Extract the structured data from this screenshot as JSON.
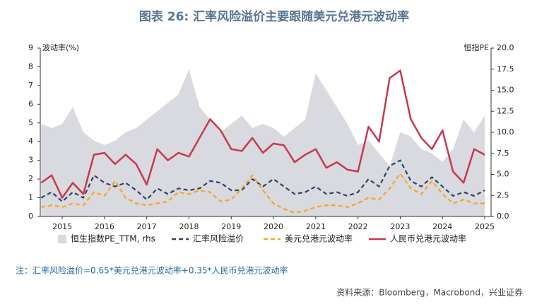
{
  "chart_data": {
    "type": "line",
    "title": "图表 26: 汇率风险溢价主要跟随美元兑港元波动率",
    "y_label": "波动率(%)",
    "y2_label": "恒指PE",
    "note": "注：汇率风险溢价=0.65*美元兑港元波动率+0.35*人民币兑港元波动率",
    "source": "资料来源：Bloomberg，Macrobond，兴业证券",
    "x": [
      2014.5,
      2014.75,
      2015,
      2015.25,
      2015.5,
      2015.75,
      2016,
      2016.25,
      2016.5,
      2016.75,
      2017,
      2017.25,
      2017.5,
      2017.75,
      2018,
      2018.25,
      2018.5,
      2018.75,
      2019,
      2019.25,
      2019.5,
      2019.75,
      2020,
      2020.25,
      2020.5,
      2020.75,
      2021,
      2021.25,
      2021.5,
      2021.75,
      2022,
      2022.25,
      2022.5,
      2022.75,
      2023,
      2023.25,
      2023.5,
      2023.75,
      2024,
      2024.25,
      2024.5,
      2024.75,
      2025
    ],
    "series": [
      {
        "name": "恒生指数PE_TTM, rhs",
        "color": "#d9d9e0",
        "axis": "y2",
        "style": "area",
        "values": [
          11,
          10.5,
          11,
          13,
          10,
          9,
          8.5,
          9,
          10,
          10.5,
          11.5,
          12.5,
          13.5,
          14.5,
          17.5,
          13,
          11.5,
          10,
          11,
          12,
          10.5,
          11,
          10.5,
          9.5,
          10.5,
          11.5,
          17,
          15,
          13,
          11,
          8.5,
          9,
          7.5,
          6,
          10,
          9.5,
          8,
          7.5,
          6.5,
          8,
          11.5,
          10,
          12
        ]
      },
      {
        "name": "汇率风险溢价",
        "color": "#2f4560",
        "style": "dash",
        "values": [
          1.0,
          1.3,
          0.8,
          1.3,
          1.0,
          2.2,
          1.8,
          1.6,
          1.8,
          1.4,
          0.9,
          1.5,
          1.2,
          1.5,
          1.4,
          1.5,
          1.9,
          1.8,
          1.4,
          1.4,
          2.0,
          1.6,
          2.0,
          1.6,
          1.2,
          1.3,
          1.6,
          1.2,
          1.3,
          1.1,
          1.3,
          2.0,
          1.6,
          2.7,
          3.0,
          1.9,
          1.6,
          2.1,
          1.6,
          1.1,
          1.3,
          1.1,
          1.4
        ]
      },
      {
        "name": "美元兑港元波动率",
        "color": "#f5a623",
        "style": "dash",
        "values": [
          0.5,
          0.6,
          0.5,
          0.7,
          0.6,
          1.3,
          1.1,
          1.9,
          1.0,
          0.7,
          0.6,
          0.7,
          0.8,
          1.3,
          1.2,
          1.4,
          1.3,
          0.8,
          0.9,
          1.5,
          2.2,
          1.4,
          0.7,
          0.4,
          0.2,
          0.3,
          0.5,
          0.6,
          0.6,
          0.5,
          0.7,
          1.0,
          0.9,
          1.5,
          2.3,
          1.5,
          1.2,
          1.9,
          1.2,
          0.7,
          0.9,
          0.7,
          0.7
        ]
      },
      {
        "name": "人民币兑港元波动率",
        "color": "#c8384f",
        "style": "solid",
        "values": [
          1.8,
          2.2,
          1.0,
          1.8,
          1.2,
          3.3,
          3.4,
          2.8,
          3.3,
          2.8,
          1.7,
          3.6,
          3.0,
          3.4,
          3.2,
          4.2,
          5.2,
          4.6,
          3.6,
          3.5,
          4.2,
          3.4,
          3.9,
          3.8,
          2.9,
          3.3,
          3.6,
          2.6,
          2.9,
          2.5,
          2.4,
          4.8,
          4.0,
          7.4,
          7.8,
          5.2,
          4.2,
          3.6,
          4.6,
          2.4,
          1.8,
          3.6,
          3.3
        ]
      }
    ],
    "xlim": [
      2014.48,
      2025.15
    ],
    "xticks": [
      2015,
      2016,
      2017,
      2018,
      2019,
      2020,
      2021,
      2022,
      2023,
      2024,
      2025
    ],
    "ylim": [
      0,
      9
    ],
    "yticks": [
      0,
      1,
      2,
      3,
      4,
      5,
      6,
      7,
      8,
      9
    ],
    "y2lim": [
      0,
      20
    ],
    "y2ticks": [
      {
        "value": 0,
        "label": "0.0"
      },
      2.5,
      {
        "value": 5,
        "label": "5.0"
      },
      7.5,
      {
        "value": 10,
        "label": "10.0"
      },
      12.5,
      {
        "value": 15,
        "label": "15.0"
      },
      17.5,
      {
        "value": 20,
        "label": "20.0"
      }
    ],
    "legend": "bottom"
  }
}
